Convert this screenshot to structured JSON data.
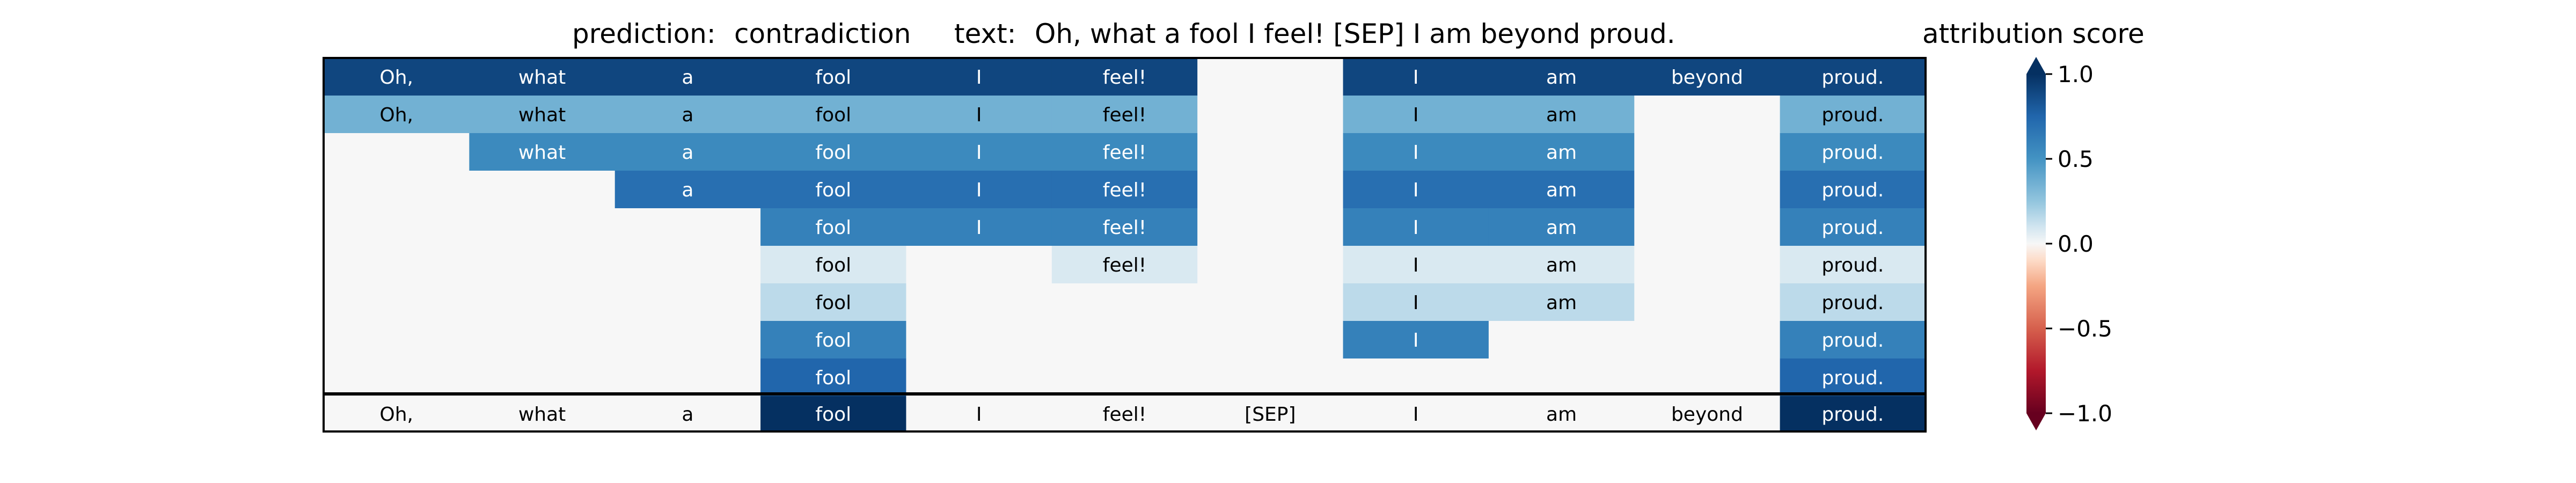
{
  "chart_data": {
    "type": "heatmap",
    "header": {
      "prediction_prefix": "prediction:",
      "prediction_label": "contradiction",
      "text_prefix": "text:",
      "text": "Oh, what a fool I feel! [SEP] I am beyond proud."
    },
    "tokens": [
      "Oh,",
      "what",
      "a",
      "fool",
      "I",
      "feel!",
      "[SEP]",
      "I",
      "am",
      "beyond",
      "proud."
    ],
    "rows": [
      {
        "labels": [
          "Oh,",
          "what",
          "a",
          "fool",
          "I",
          "feel!",
          "",
          "I",
          "am",
          "beyond",
          "proud."
        ],
        "values": [
          0.9,
          0.9,
          0.9,
          0.9,
          0.9,
          0.9,
          0,
          0.9,
          0.9,
          0.9,
          0.9
        ]
      },
      {
        "labels": [
          "Oh,",
          "what",
          "a",
          "fool",
          "I",
          "feel!",
          "",
          "I",
          "am",
          "",
          "proud."
        ],
        "values": [
          0.35,
          0.35,
          0.35,
          0.35,
          0.35,
          0.35,
          0,
          0.35,
          0.35,
          0,
          0.35
        ]
      },
      {
        "labels": [
          "",
          "what",
          "a",
          "fool",
          "I",
          "feel!",
          "",
          "I",
          "am",
          "",
          "proud."
        ],
        "values": [
          0,
          0.55,
          0.55,
          0.55,
          0.55,
          0.55,
          0,
          0.55,
          0.55,
          0,
          0.55
        ]
      },
      {
        "labels": [
          "",
          "",
          "a",
          "fool",
          "I",
          "feel!",
          "",
          "I",
          "am",
          "",
          "proud."
        ],
        "values": [
          0,
          0,
          0.7,
          0.7,
          0.7,
          0.7,
          0,
          0.7,
          0.7,
          0,
          0.7
        ]
      },
      {
        "labels": [
          "",
          "",
          "",
          "fool",
          "I",
          "feel!",
          "",
          "I",
          "am",
          "",
          "proud."
        ],
        "values": [
          0,
          0,
          0,
          0.6,
          0.6,
          0.6,
          0,
          0.6,
          0.6,
          0,
          0.6
        ]
      },
      {
        "labels": [
          "",
          "",
          "",
          "fool",
          "",
          "feel!",
          "",
          "I",
          "am",
          "",
          "proud."
        ],
        "values": [
          0,
          0,
          0,
          0.08,
          0,
          0.08,
          0,
          0.08,
          0.08,
          0,
          0.08
        ]
      },
      {
        "labels": [
          "",
          "",
          "",
          "fool",
          "",
          "",
          "",
          "I",
          "am",
          "",
          "proud."
        ],
        "values": [
          0,
          0,
          0,
          0.15,
          0,
          0,
          0,
          0.15,
          0.15,
          0,
          0.15
        ]
      },
      {
        "labels": [
          "",
          "",
          "",
          "fool",
          "",
          "",
          "",
          "I",
          "",
          "",
          "proud."
        ],
        "values": [
          0,
          0,
          0,
          0.6,
          0,
          0,
          0,
          0.6,
          0,
          0,
          0.6
        ]
      },
      {
        "labels": [
          "",
          "",
          "",
          "fool",
          "",
          "",
          "",
          "",
          "",
          "",
          "proud."
        ],
        "values": [
          0,
          0,
          0,
          0.75,
          0,
          0,
          0,
          0,
          0,
          0,
          0.75
        ]
      },
      {
        "labels": [
          "Oh,",
          "what",
          "a",
          "fool",
          "I",
          "feel!",
          "[SEP]",
          "I",
          "am",
          "beyond",
          "proud."
        ],
        "values": [
          0,
          0,
          0,
          1.0,
          0,
          0,
          0,
          0,
          0,
          0,
          1.0
        ]
      }
    ],
    "colorbar": {
      "label": "attribution score",
      "ticks": [
        "1.0",
        "0.5",
        "0.0",
        "−0.5",
        "−1.0"
      ],
      "tick_values": [
        1.0,
        0.5,
        0.0,
        -0.5,
        -1.0
      ],
      "range": [
        -1,
        1
      ],
      "colormap": "RdBu"
    }
  }
}
